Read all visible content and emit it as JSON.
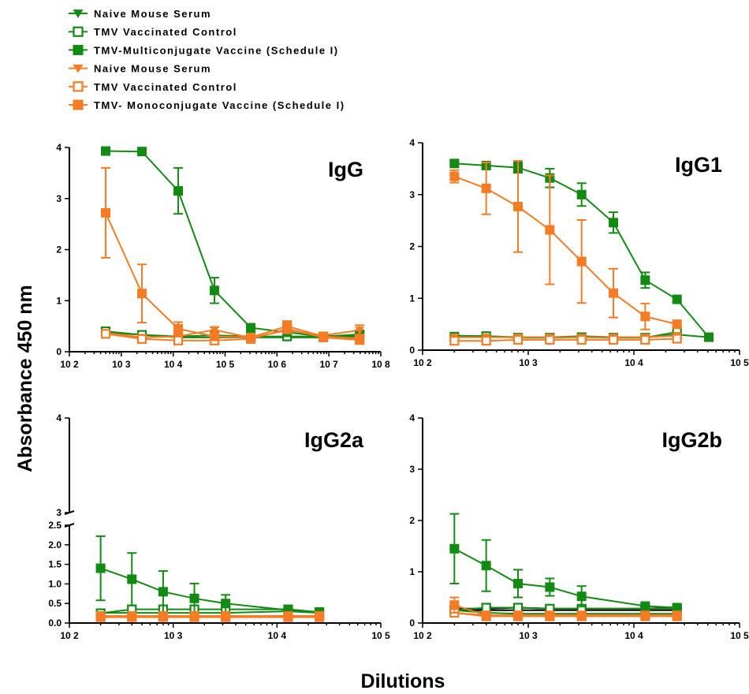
{
  "colors": {
    "green": "#138a13",
    "orange": "#f57b24",
    "black": "#000000"
  },
  "legend": [
    {
      "label": "Naive Mouse Serum",
      "marker": "tri-down",
      "color": "#138a13"
    },
    {
      "label": "TMV Vaccinated Control",
      "marker": "square-open",
      "color": "#138a13"
    },
    {
      "label": "TMV-Multiconjugate Vaccine (Schedule I)",
      "marker": "square",
      "color": "#138a13"
    },
    {
      "label": "Naive Mouse Serum",
      "marker": "tri-down",
      "color": "#f57b24"
    },
    {
      "label": "TMV Vaccinated Control",
      "marker": "square-open",
      "color": "#f57b24"
    },
    {
      "label": "TMV- Monoconjugate Vaccine (Schedule I)",
      "marker": "square",
      "color": "#f57b24"
    }
  ],
  "ylabel": "Absorbance 450 nm",
  "xlabel": "Dilutions",
  "chart_data": [
    {
      "type": "line",
      "title": "IgG",
      "x_scale": "log",
      "xlim": [
        100,
        100000000
      ],
      "ylim": [
        0,
        4
      ],
      "x_ticks": [
        "10 2",
        "10 3",
        "10 4",
        "10 5",
        "10 6",
        "10 7",
        "10 8"
      ],
      "y_ticks": [
        "0",
        "1",
        "2",
        "3",
        "4"
      ],
      "series": [
        {
          "group": "multi-naive",
          "marker": "tri-down",
          "color": "#138a13",
          "x": [
            500,
            2500,
            12500,
            62500,
            312500,
            1562500,
            7812500,
            39062500
          ],
          "y": [
            0.38,
            0.33,
            0.28,
            0.28,
            0.28,
            0.28,
            0.28,
            0.3
          ]
        },
        {
          "group": "multi-tmv",
          "marker": "square-open",
          "color": "#138a13",
          "x": [
            500,
            2500,
            12500,
            62500,
            312500,
            1562500,
            7812500,
            39062500
          ],
          "y": [
            0.4,
            0.33,
            0.3,
            0.32,
            0.3,
            0.3,
            0.3,
            0.33
          ]
        },
        {
          "group": "multi-vaccine",
          "marker": "square",
          "color": "#138a13",
          "x": [
            500,
            2500,
            12500,
            62500,
            312500,
            1562500,
            7812500,
            39062500
          ],
          "y": [
            3.93,
            3.92,
            3.15,
            1.2,
            0.47,
            0.38,
            0.3,
            0.34
          ],
          "err": [
            0.03,
            0.03,
            0.45,
            0.25,
            0.05,
            0.04,
            0.03,
            0.05
          ]
        },
        {
          "group": "mono-naive",
          "marker": "tri-down",
          "color": "#f57b24",
          "x": [
            500,
            2500,
            12500,
            62500,
            312500,
            1562500,
            7812500,
            39062500
          ],
          "y": [
            0.37,
            0.28,
            0.3,
            0.43,
            0.27,
            0.42,
            0.32,
            0.42
          ],
          "err": [
            0.03,
            0.04,
            0.05,
            0.05,
            0.04,
            0.06,
            0.05,
            0.1
          ]
        },
        {
          "group": "mono-tmv",
          "marker": "square-open",
          "color": "#f57b24",
          "x": [
            500,
            2500,
            12500,
            62500,
            312500,
            1562500,
            7812500,
            39062500
          ],
          "y": [
            0.35,
            0.25,
            0.22,
            0.22,
            0.25,
            0.45,
            0.28,
            0.23
          ],
          "err": [
            0.03,
            0.03,
            0.03,
            0.03,
            0.03,
            0.08,
            0.04,
            0.05
          ]
        },
        {
          "group": "mono-vaccine",
          "marker": "square",
          "color": "#f57b24",
          "x": [
            500,
            2500,
            12500,
            62500,
            312500,
            1562500,
            7812500,
            39062500
          ],
          "y": [
            2.72,
            1.14,
            0.45,
            0.3,
            0.28,
            0.5,
            0.3,
            0.26
          ],
          "err": [
            0.88,
            0.57,
            0.13,
            0.05,
            0.05,
            0.1,
            0.05,
            0.05
          ]
        }
      ]
    },
    {
      "type": "line",
      "title": "IgG1",
      "x_scale": "log",
      "xlim": [
        100,
        100000
      ],
      "ylim": [
        0,
        4
      ],
      "x_ticks": [
        "10 2",
        "10 3",
        "10 4",
        "10 5"
      ],
      "y_ticks": [
        "0",
        "1",
        "2",
        "3",
        "4"
      ],
      "series": [
        {
          "group": "multi-naive",
          "marker": "tri-down",
          "color": "#138a13",
          "x": [
            200,
            400,
            800,
            1600,
            3200,
            6400,
            12800,
            25600,
            51200
          ],
          "y": [
            0.28,
            0.27,
            0.25,
            0.25,
            0.27,
            0.25,
            0.25,
            0.3,
            0.25
          ]
        },
        {
          "group": "multi-tmv",
          "marker": "square-open",
          "color": "#138a13",
          "x": [
            200,
            400,
            800,
            1600,
            3200,
            6400,
            12800,
            25600
          ],
          "y": [
            0.26,
            0.27,
            0.24,
            0.24,
            0.25,
            0.24,
            0.24,
            0.35
          ]
        },
        {
          "group": "multi-vaccine",
          "marker": "square",
          "color": "#138a13",
          "x": [
            200,
            400,
            800,
            1600,
            3200,
            6400,
            12800,
            25600,
            51200
          ],
          "y": [
            3.6,
            3.56,
            3.52,
            3.32,
            3.0,
            2.46,
            1.35,
            0.98,
            0.25
          ],
          "err": [
            0.05,
            0.06,
            0.1,
            0.18,
            0.22,
            0.2,
            0.15,
            0.05,
            0.02
          ]
        },
        {
          "group": "mono-naive",
          "marker": "tri-down",
          "color": "#f57b24",
          "x": [
            200,
            400,
            800,
            1600,
            3200,
            6400,
            12800,
            25600
          ],
          "y": [
            0.25,
            0.25,
            0.25,
            0.25,
            0.25,
            0.25,
            0.25,
            0.28
          ]
        },
        {
          "group": "mono-tmv",
          "marker": "square-open",
          "color": "#f57b24",
          "x": [
            200,
            400,
            800,
            1600,
            3200,
            6400,
            12800,
            25600
          ],
          "y": [
            0.18,
            0.18,
            0.2,
            0.2,
            0.2,
            0.2,
            0.2,
            0.22
          ]
        },
        {
          "group": "mono-vaccine",
          "marker": "square",
          "color": "#f57b24",
          "x": [
            200,
            400,
            800,
            1600,
            3200,
            6400,
            12800,
            25600
          ],
          "y": [
            3.35,
            3.12,
            2.77,
            2.32,
            1.71,
            1.1,
            0.65,
            0.5
          ],
          "err": [
            0.12,
            0.5,
            0.88,
            1.05,
            0.8,
            0.47,
            0.25,
            0.05
          ]
        }
      ]
    },
    {
      "type": "line",
      "title": "IgG2a",
      "x_scale": "log",
      "xlim": [
        100,
        100000
      ],
      "ylim": [
        0,
        4
      ],
      "y_break": [
        2.5,
        3
      ],
      "x_ticks": [
        "10 2",
        "10 3",
        "10 4",
        "10 5"
      ],
      "y_ticks": [
        "0.0",
        "0.5",
        "1.0",
        "1.5",
        "2.0",
        "2.5",
        "3",
        "4"
      ],
      "series": [
        {
          "group": "multi-naive",
          "marker": "tri-down",
          "color": "#138a13",
          "x": [
            200,
            400,
            800,
            1600,
            3200,
            12800,
            25600
          ],
          "y": [
            0.26,
            0.26,
            0.26,
            0.26,
            0.26,
            0.3,
            0.26
          ]
        },
        {
          "group": "multi-tmv",
          "marker": "square-open",
          "color": "#138a13",
          "x": [
            200,
            400,
            800,
            1600,
            3200,
            12800,
            25600
          ],
          "y": [
            0.25,
            0.35,
            0.35,
            0.35,
            0.35,
            0.35,
            0.28
          ]
        },
        {
          "group": "multi-vaccine",
          "marker": "square",
          "color": "#138a13",
          "x": [
            200,
            400,
            800,
            1600,
            3200,
            12800,
            25600
          ],
          "y": [
            1.4,
            1.12,
            0.8,
            0.63,
            0.5,
            0.33,
            0.26
          ],
          "err": [
            0.82,
            0.67,
            0.53,
            0.38,
            0.22,
            0.03,
            0.03
          ]
        },
        {
          "group": "mono-naive",
          "marker": "tri-down",
          "color": "#f57b24",
          "x": [
            200,
            400,
            800,
            1600,
            3200,
            12800,
            25600
          ],
          "y": [
            0.18,
            0.18,
            0.18,
            0.18,
            0.18,
            0.18,
            0.18
          ]
        },
        {
          "group": "mono-tmv",
          "marker": "square-open",
          "color": "#f57b24",
          "x": [
            200,
            400,
            800,
            1600,
            3200,
            12800,
            25600
          ],
          "y": [
            0.15,
            0.15,
            0.15,
            0.15,
            0.15,
            0.15,
            0.15
          ]
        },
        {
          "group": "mono-vaccine",
          "marker": "square",
          "color": "#f57b24",
          "x": [
            200,
            400,
            800,
            1600,
            3200,
            12800,
            25600
          ],
          "y": [
            0.18,
            0.18,
            0.18,
            0.18,
            0.18,
            0.18,
            0.18
          ]
        }
      ]
    },
    {
      "type": "line",
      "title": "IgG2b",
      "x_scale": "log",
      "xlim": [
        100,
        100000
      ],
      "ylim": [
        0,
        4
      ],
      "x_ticks": [
        "10 2",
        "10 3",
        "10 4",
        "10 5"
      ],
      "y_ticks": [
        "0",
        "1",
        "2",
        "3",
        "4"
      ],
      "series": [
        {
          "group": "black-naive",
          "marker": "tri-down",
          "color": "#000000",
          "x": [
            200,
            400,
            800,
            1600,
            3200,
            12800,
            25600
          ],
          "y": [
            0.28,
            0.28,
            0.3,
            0.28,
            0.28,
            0.28,
            0.3
          ]
        },
        {
          "group": "black-tmv",
          "marker": "square-open",
          "color": "#000000",
          "x": [
            200,
            400,
            800,
            1600,
            3200,
            12800,
            25600
          ],
          "y": [
            0.25,
            0.25,
            0.25,
            0.25,
            0.25,
            0.25,
            0.25
          ]
        },
        {
          "group": "multi-naive",
          "marker": "tri-down",
          "color": "#138a13",
          "x": [
            200,
            400,
            800,
            1600,
            3200,
            12800,
            25600
          ],
          "y": [
            0.25,
            0.2,
            0.18,
            0.18,
            0.18,
            0.18,
            0.18
          ]
        },
        {
          "group": "multi-tmv",
          "marker": "square-open",
          "color": "#138a13",
          "x": [
            200,
            400,
            800,
            1600,
            3200,
            12800,
            25600
          ],
          "y": [
            0.25,
            0.3,
            0.3,
            0.28,
            0.28,
            0.28,
            0.28
          ]
        },
        {
          "group": "multi-vaccine",
          "marker": "square",
          "color": "#138a13",
          "x": [
            200,
            400,
            800,
            1600,
            3200,
            12800,
            25600
          ],
          "y": [
            1.45,
            1.12,
            0.77,
            0.7,
            0.52,
            0.33,
            0.3
          ],
          "err": [
            0.68,
            0.5,
            0.27,
            0.17,
            0.2,
            0.05,
            0.03
          ]
        },
        {
          "group": "mono-naive",
          "marker": "tri-down",
          "color": "#f57b24",
          "x": [
            200,
            400,
            800,
            1600,
            3200,
            12800,
            25600
          ],
          "y": [
            0.2,
            0.15,
            0.15,
            0.15,
            0.15,
            0.15,
            0.15
          ]
        },
        {
          "group": "mono-tmv",
          "marker": "square-open",
          "color": "#f57b24",
          "x": [
            200,
            400,
            800,
            1600,
            3200,
            12800,
            25600
          ],
          "y": [
            0.2,
            0.13,
            0.13,
            0.13,
            0.13,
            0.13,
            0.13
          ]
        },
        {
          "group": "mono-vaccine",
          "marker": "square",
          "color": "#f57b24",
          "x": [
            200,
            400,
            800,
            1600,
            3200,
            12800,
            25600
          ],
          "y": [
            0.35,
            0.15,
            0.15,
            0.15,
            0.15,
            0.15,
            0.15
          ],
          "err": [
            0.15,
            0.03,
            0.03,
            0.03,
            0.03,
            0.03,
            0.03
          ]
        }
      ]
    }
  ]
}
